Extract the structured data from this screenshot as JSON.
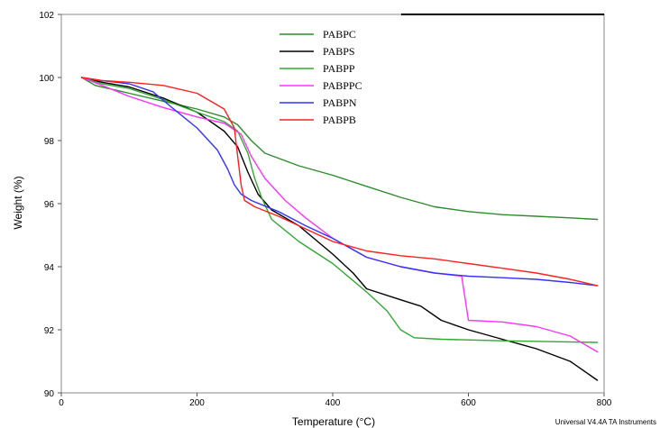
{
  "chart_data": {
    "type": "line",
    "title": "",
    "xlabel": "Temperature (°C)",
    "ylabel": "Weight (%)",
    "xlim": [
      0,
      800
    ],
    "ylim": [
      90,
      102
    ],
    "x_ticks": [
      0,
      200,
      400,
      600,
      800
    ],
    "y_ticks": [
      90,
      92,
      94,
      96,
      98,
      100,
      102
    ],
    "grid": false,
    "legend_position": "top-center",
    "footer_note": "Universal V4.4A TA Instruments",
    "series": [
      {
        "name": "PABPC",
        "color": "#2e8b2e",
        "points": [
          [
            30,
            100
          ],
          [
            50,
            99.75
          ],
          [
            100,
            99.5
          ],
          [
            150,
            99.25
          ],
          [
            200,
            99
          ],
          [
            240,
            98.75
          ],
          [
            260,
            98.5
          ],
          [
            280,
            98
          ],
          [
            300,
            97.6
          ],
          [
            350,
            97.2
          ],
          [
            400,
            96.9
          ],
          [
            450,
            96.55
          ],
          [
            500,
            96.2
          ],
          [
            550,
            95.9
          ],
          [
            600,
            95.75
          ],
          [
            650,
            95.65
          ],
          [
            700,
            95.6
          ],
          [
            750,
            95.55
          ],
          [
            790,
            95.5
          ]
        ]
      },
      {
        "name": "PABPS",
        "color": "#000000",
        "points": [
          [
            30,
            100
          ],
          [
            60,
            99.85
          ],
          [
            100,
            99.7
          ],
          [
            150,
            99.35
          ],
          [
            200,
            98.9
          ],
          [
            240,
            98.3
          ],
          [
            260,
            97.8
          ],
          [
            275,
            97
          ],
          [
            290,
            96.3
          ],
          [
            310,
            95.8
          ],
          [
            350,
            95.3
          ],
          [
            400,
            94.4
          ],
          [
            430,
            93.8
          ],
          [
            450,
            93.3
          ],
          [
            500,
            92.95
          ],
          [
            530,
            92.75
          ],
          [
            560,
            92.3
          ],
          [
            600,
            92
          ],
          [
            650,
            91.7
          ],
          [
            700,
            91.4
          ],
          [
            750,
            91
          ],
          [
            790,
            90.4
          ]
        ]
      },
      {
        "name": "PABPP",
        "color": "#32a832",
        "points": [
          [
            30,
            100
          ],
          [
            60,
            99.8
          ],
          [
            100,
            99.65
          ],
          [
            150,
            99.3
          ],
          [
            200,
            98.9
          ],
          [
            240,
            98.6
          ],
          [
            260,
            98.3
          ],
          [
            275,
            97.6
          ],
          [
            285,
            96.8
          ],
          [
            295,
            96.2
          ],
          [
            310,
            95.5
          ],
          [
            350,
            94.8
          ],
          [
            400,
            94.1
          ],
          [
            450,
            93.2
          ],
          [
            480,
            92.6
          ],
          [
            500,
            92
          ],
          [
            520,
            91.75
          ],
          [
            560,
            91.7
          ],
          [
            650,
            91.65
          ],
          [
            790,
            91.6
          ]
        ]
      },
      {
        "name": "PABPPC",
        "color": "#ff33ff",
        "points": [
          [
            30,
            100
          ],
          [
            60,
            99.75
          ],
          [
            100,
            99.4
          ],
          [
            150,
            99.05
          ],
          [
            200,
            98.75
          ],
          [
            240,
            98.55
          ],
          [
            265,
            98.2
          ],
          [
            280,
            97.5
          ],
          [
            300,
            96.8
          ],
          [
            330,
            96.1
          ],
          [
            360,
            95.55
          ],
          [
            400,
            94.9
          ],
          [
            450,
            94.3
          ],
          [
            500,
            94
          ],
          [
            550,
            93.8
          ],
          [
            590,
            93.7
          ],
          [
            600,
            92.3
          ],
          [
            650,
            92.25
          ],
          [
            700,
            92.1
          ],
          [
            750,
            91.8
          ],
          [
            790,
            91.3
          ]
        ]
      },
      {
        "name": "PABPN",
        "color": "#3333ff",
        "points": [
          [
            30,
            100
          ],
          [
            60,
            99.9
          ],
          [
            100,
            99.8
          ],
          [
            135,
            99.55
          ],
          [
            160,
            99.1
          ],
          [
            200,
            98.4
          ],
          [
            230,
            97.7
          ],
          [
            245,
            97.1
          ],
          [
            255,
            96.6
          ],
          [
            265,
            96.3
          ],
          [
            280,
            96.1
          ],
          [
            320,
            95.75
          ],
          [
            360,
            95.3
          ],
          [
            400,
            94.9
          ],
          [
            450,
            94.3
          ],
          [
            500,
            94
          ],
          [
            550,
            93.8
          ],
          [
            600,
            93.7
          ],
          [
            650,
            93.65
          ],
          [
            700,
            93.6
          ],
          [
            750,
            93.5
          ],
          [
            790,
            93.4
          ]
        ]
      },
      {
        "name": "PABPB",
        "color": "#ff2020",
        "points": [
          [
            30,
            100
          ],
          [
            60,
            99.9
          ],
          [
            100,
            99.85
          ],
          [
            150,
            99.75
          ],
          [
            200,
            99.5
          ],
          [
            240,
            99
          ],
          [
            255,
            98.4
          ],
          [
            260,
            97.5
          ],
          [
            265,
            96.6
          ],
          [
            270,
            96.1
          ],
          [
            285,
            95.9
          ],
          [
            320,
            95.6
          ],
          [
            360,
            95.2
          ],
          [
            400,
            94.8
          ],
          [
            450,
            94.5
          ],
          [
            500,
            94.35
          ],
          [
            550,
            94.25
          ],
          [
            600,
            94.1
          ],
          [
            650,
            93.95
          ],
          [
            700,
            93.8
          ],
          [
            750,
            93.6
          ],
          [
            790,
            93.4
          ]
        ]
      }
    ]
  }
}
